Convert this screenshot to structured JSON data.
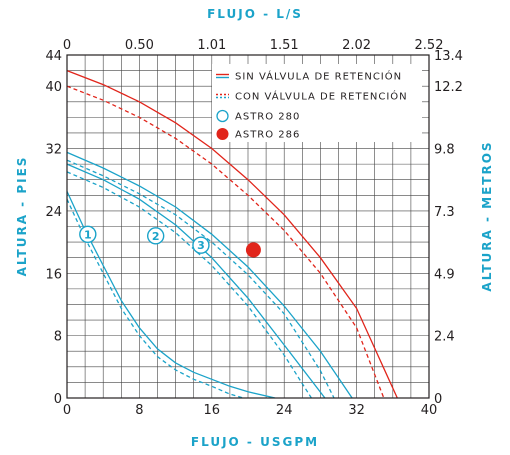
{
  "chart_data": {
    "type": "line",
    "title_top": "FLUJO - L/S",
    "xlabel": "FLUJO - USGPM",
    "ylabel_left": "ALTURA - PIES",
    "ylabel_right": "ALTURA - METROS",
    "xlim": [
      0,
      40
    ],
    "ylim": [
      0,
      44
    ],
    "x_ticks": [
      "0",
      "8",
      "16",
      "24",
      "32",
      "40"
    ],
    "x_tick_values": [
      0,
      8,
      16,
      24,
      32,
      40
    ],
    "y_ticks_left": [
      "0",
      "8",
      "16",
      "24",
      "32",
      "40",
      "44"
    ],
    "y_tick_values_left": [
      0,
      8,
      16,
      24,
      32,
      40,
      44
    ],
    "x_ticks_top": [
      "0",
      "0.50",
      "1.01",
      "1.51",
      "2.02",
      "2.52"
    ],
    "x_tick_values_top": [
      0,
      8,
      16,
      24,
      32,
      40
    ],
    "y_ticks_right": [
      "0",
      "2.4",
      "4.9",
      "7.3",
      "9.8",
      "12.2",
      "13.4"
    ],
    "y_tick_values_right": [
      0,
      8,
      16,
      24,
      32,
      40,
      44
    ],
    "grid": true,
    "legend_position": "top-right",
    "legend": [
      {
        "label": "SIN VÁLVULA DE RETENCIÓN",
        "style": "solid-line"
      },
      {
        "label": "CON VÁLVULA DE RETENCIÓN",
        "style": "dashed-line"
      },
      {
        "label": "ASTRO 280",
        "style": "open-circle"
      },
      {
        "label": "ASTRO 286",
        "style": "filled-circle"
      }
    ],
    "colors": {
      "astro280": "#1ba3c9",
      "astro286": "#e1251b",
      "axis": "#231f20",
      "grid": "#444444",
      "title": "#1ba3c9"
    },
    "series": [
      {
        "model": "ASTRO 286",
        "variant": "SIN VÁLVULA DE RETENCIÓN",
        "x": [
          0,
          4,
          8,
          12,
          16,
          20,
          24,
          28,
          32,
          36.5
        ],
        "y": [
          42,
          40.2,
          38,
          35.3,
          32,
          28,
          23.5,
          18,
          11.5,
          0
        ]
      },
      {
        "model": "ASTRO 286",
        "variant": "CON VÁLVULA DE RETENCIÓN",
        "x": [
          0,
          4,
          8,
          12,
          16,
          20,
          24,
          28,
          32,
          35
        ],
        "y": [
          40,
          38.2,
          36,
          33.3,
          30,
          26,
          21.5,
          16,
          9,
          0
        ]
      },
      {
        "model": "ASTRO 280",
        "curve": "1",
        "variant": "SIN VÁLVULA DE RETENCIÓN",
        "x": [
          0,
          1,
          2,
          4,
          6,
          8,
          10,
          12,
          14,
          16,
          18,
          20,
          23
        ],
        "y": [
          26.5,
          24,
          21.5,
          17,
          12.5,
          9,
          6.3,
          4.5,
          3.3,
          2.4,
          1.5,
          0.8,
          0
        ]
      },
      {
        "model": "ASTRO 280",
        "curve": "1",
        "variant": "CON VÁLVULA DE RETENCIÓN",
        "x": [
          0,
          1,
          2,
          4,
          6,
          8,
          10,
          12,
          14,
          16,
          18,
          19.5
        ],
        "y": [
          25.5,
          23,
          20.5,
          16,
          11.5,
          8,
          5.3,
          3.6,
          2.4,
          1.5,
          0.5,
          0
        ]
      },
      {
        "model": "ASTRO 280",
        "curve": "2",
        "variant": "SIN VÁLVULA DE RETENCIÓN",
        "x": [
          0,
          4,
          8,
          12,
          16,
          20,
          24,
          28.5
        ],
        "y": [
          30,
          28,
          25.5,
          22.2,
          18,
          12.8,
          6.8,
          0
        ]
      },
      {
        "model": "ASTRO 280",
        "curve": "2",
        "variant": "CON VÁLVULA DE RETENCIÓN",
        "x": [
          0,
          4,
          8,
          12,
          16,
          20,
          24,
          27
        ],
        "y": [
          29,
          27,
          24.5,
          21.2,
          17,
          11.8,
          5.5,
          0
        ]
      },
      {
        "model": "ASTRO 280",
        "curve": "3",
        "variant": "SIN VÁLVULA DE RETENCIÓN",
        "x": [
          0,
          4,
          8,
          12,
          16,
          20,
          24,
          28,
          31.5
        ],
        "y": [
          31.5,
          29.5,
          27.2,
          24.5,
          21,
          16.8,
          11.8,
          6,
          0
        ]
      },
      {
        "model": "ASTRO 280",
        "curve": "3",
        "variant": "CON VÁLVULA DE RETENCIÓN",
        "x": [
          0,
          4,
          8,
          12,
          16,
          20,
          24,
          28,
          29.5
        ],
        "y": [
          30.5,
          28.5,
          26.2,
          23.5,
          20,
          15.8,
          10.8,
          3.5,
          0
        ]
      }
    ],
    "curve_labels": [
      {
        "text": "1",
        "x": 2.3,
        "y": 21
      },
      {
        "text": "2",
        "x": 9.8,
        "y": 20.8
      },
      {
        "text": "3",
        "x": 14.8,
        "y": 19.6
      }
    ],
    "marker_point": {
      "model": "ASTRO 286",
      "x": 20.6,
      "y": 19
    }
  }
}
